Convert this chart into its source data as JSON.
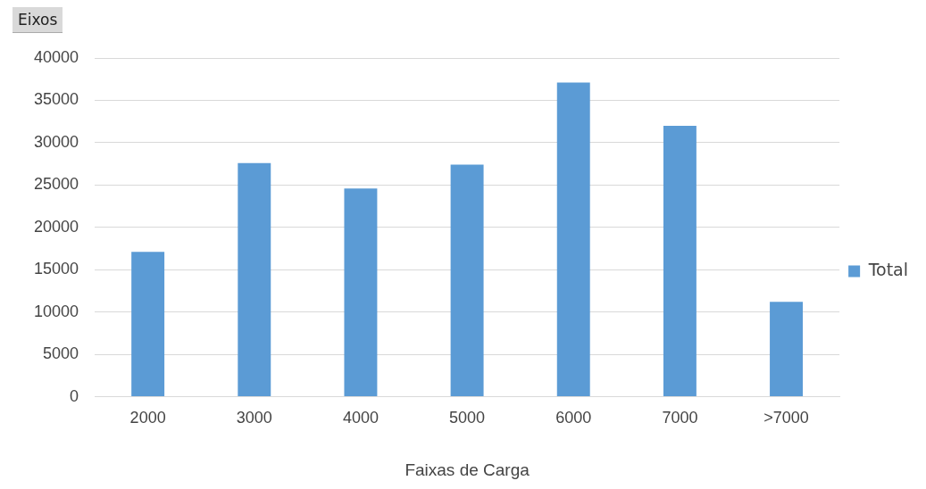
{
  "chart_data": {
    "type": "bar",
    "ylabel": "Eixos",
    "xlabel": "Faixas de Carga",
    "categories": [
      "2000",
      "3000",
      "4000",
      "5000",
      "6000",
      "7000",
      ">7000"
    ],
    "series": [
      {
        "name": "Total",
        "color": "#5b9bd5",
        "values": [
          17100,
          27600,
          24600,
          27400,
          37100,
          32000,
          11200
        ]
      }
    ],
    "ylim": [
      0,
      40000
    ],
    "yticks": [
      0,
      5000,
      10000,
      15000,
      20000,
      25000,
      30000,
      35000,
      40000
    ],
    "grid": "y",
    "legend": "right"
  }
}
